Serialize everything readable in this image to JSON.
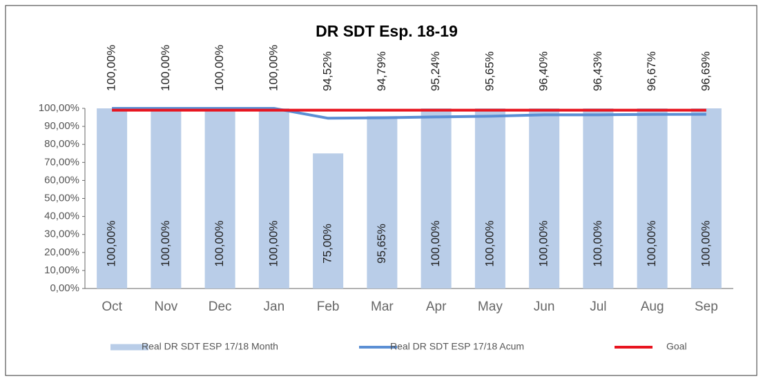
{
  "chart_data": {
    "type": "combo",
    "title": "DR SDT Esp. 18-19",
    "categories": [
      "Oct",
      "Nov",
      "Dec",
      "Jan",
      "Feb",
      "Mar",
      "Apr",
      "May",
      "Jun",
      "Jul",
      "Aug",
      "Sep"
    ],
    "series": [
      {
        "name": "Real DR SDT ESP 17/18 Month",
        "type": "bar",
        "color": "#b9cde8",
        "values": [
          100,
          100,
          100,
          100,
          75,
          95.65,
          100,
          100,
          100,
          100,
          100,
          100
        ],
        "value_labels": [
          "100,00%",
          "100,00%",
          "100,00%",
          "100,00%",
          "75,00%",
          "95,65%",
          "100,00%",
          "100,00%",
          "100,00%",
          "100,00%",
          "100,00%",
          "100,00%"
        ]
      },
      {
        "name": "Real DR SDT ESP 17/18 Acum",
        "type": "line",
        "color": "#5b8fd4",
        "values": [
          100,
          100,
          100,
          100,
          94.52,
          94.79,
          95.24,
          95.65,
          96.4,
          96.43,
          96.67,
          96.69
        ],
        "value_labels": [
          "100,00%",
          "100,00%",
          "100,00%",
          "100,00%",
          "94,52%",
          "94,79%",
          "95,24%",
          "95,65%",
          "96,40%",
          "96,43%",
          "96,67%",
          "96,69%"
        ]
      },
      {
        "name": "Goal",
        "type": "line",
        "color": "#e8141f",
        "values": [
          99,
          99,
          99,
          99,
          99,
          99,
          99,
          99,
          99,
          99,
          99,
          99
        ]
      }
    ],
    "ylim": [
      0,
      100
    ],
    "yticks": [
      {
        "value": 0,
        "label": "0,00%"
      },
      {
        "value": 10,
        "label": "10,00%"
      },
      {
        "value": 20,
        "label": "20,00%"
      },
      {
        "value": 30,
        "label": "30,00%"
      },
      {
        "value": 40,
        "label": "40,00%"
      },
      {
        "value": 50,
        "label": "50,00%"
      },
      {
        "value": 60,
        "label": "60,00%"
      },
      {
        "value": 70,
        "label": "70,00%"
      },
      {
        "value": 80,
        "label": "80,00%"
      },
      {
        "value": 90,
        "label": "90,00%"
      },
      {
        "value": 100,
        "label": "100,00%"
      }
    ],
    "legend": "bottom"
  }
}
